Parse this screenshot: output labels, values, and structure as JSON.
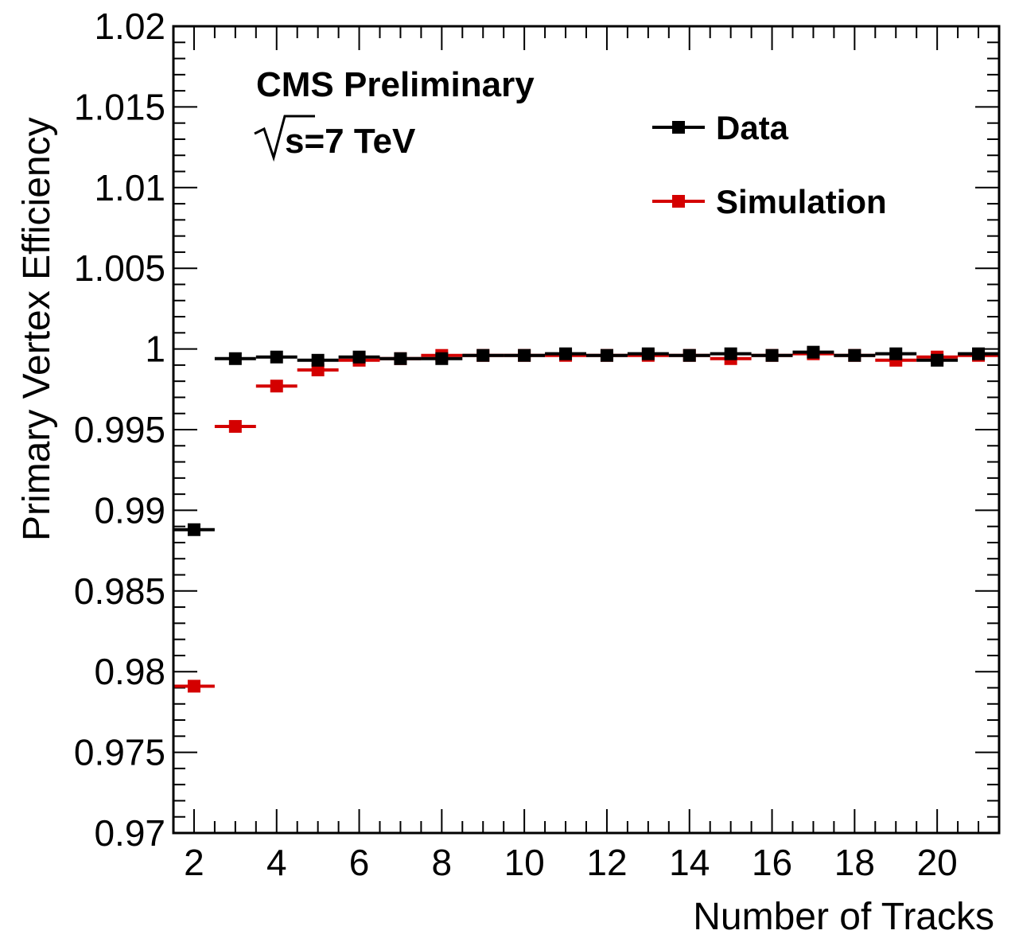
{
  "chart_data": {
    "type": "scatter",
    "xlabel": "Number of Tracks",
    "ylabel": "Primary Vertex Efficiency",
    "xlim": [
      1.5,
      21.5
    ],
    "ylim": [
      0.97,
      1.02
    ],
    "x_ticks": [
      2,
      4,
      6,
      8,
      10,
      12,
      14,
      16,
      18,
      20
    ],
    "x_tick_labels": [
      "2",
      "4",
      "6",
      "8",
      "10",
      "12",
      "14",
      "16",
      "18",
      "20"
    ],
    "y_ticks": [
      0.97,
      0.975,
      0.98,
      0.985,
      0.99,
      0.995,
      1.0,
      1.005,
      1.01,
      1.015,
      1.02
    ],
    "y_tick_labels": [
      "0.97",
      "0.975",
      "0.98",
      "0.985",
      "0.99",
      "0.995",
      "1",
      "1.005",
      "1.01",
      "1.015",
      "1.02"
    ],
    "x": [
      2,
      3,
      4,
      5,
      6,
      7,
      8,
      9,
      10,
      11,
      12,
      13,
      14,
      15,
      16,
      17,
      18,
      19,
      20,
      21
    ],
    "x_bin_half_width": 0.5,
    "series": [
      {
        "name": "Data",
        "color": "#000000",
        "values": [
          0.9888,
          0.9994,
          0.9995,
          0.9993,
          0.9995,
          0.9994,
          0.9994,
          0.9996,
          0.9996,
          0.9997,
          0.9996,
          0.9997,
          0.9996,
          0.9997,
          0.9996,
          0.9998,
          0.9996,
          0.9997,
          0.9993,
          0.9997
        ]
      },
      {
        "name": "Simulation",
        "color": "#d40000",
        "values": [
          0.9791,
          0.9952,
          0.9977,
          0.9987,
          0.9993,
          0.9994,
          0.9996,
          0.9996,
          0.9996,
          0.9996,
          0.9996,
          0.9996,
          0.9996,
          0.9994,
          0.9996,
          0.9997,
          0.9996,
          0.9993,
          0.9995,
          0.9996
        ]
      }
    ],
    "annotations": [
      "CMS Preliminary",
      "s=7 TeV"
    ],
    "legend_position": "top-right",
    "grid": false
  }
}
